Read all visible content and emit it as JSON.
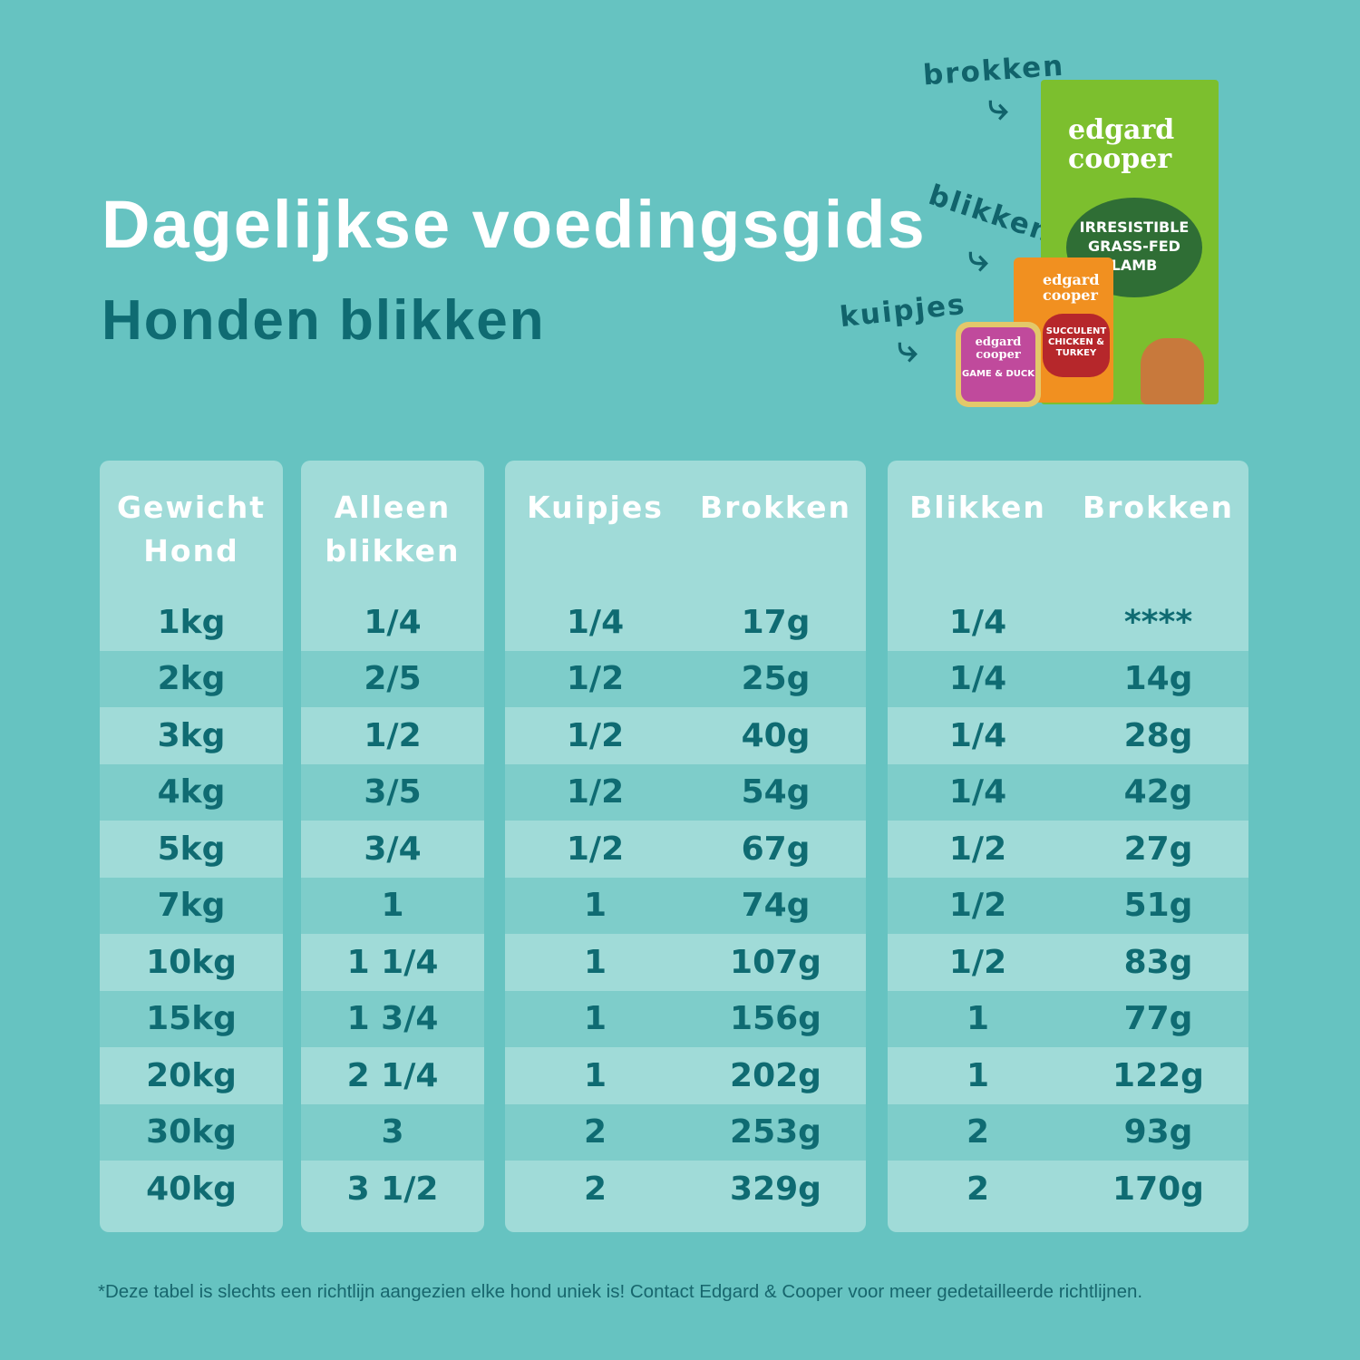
{
  "header": {
    "title": "Dagelijkse voedingsgids",
    "subtitle": "Honden blikken"
  },
  "products": {
    "labels": {
      "brokken": "brokken",
      "blikken": "blikken",
      "kuipjes": "kuipjes"
    },
    "bag": {
      "brand": "edgard cooper",
      "flavor": "IRRESISTIBLE GRASS-FED LAMB"
    },
    "can": {
      "brand": "edgard cooper",
      "flavor": "SUCCULENT CHICKEN & TURKEY"
    },
    "tray": {
      "brand": "edgard cooper",
      "flavor": "GAME & DUCK"
    }
  },
  "table": {
    "card1": {
      "headers": [
        "Gewicht Hond"
      ],
      "rows": [
        [
          "1kg"
        ],
        [
          "2kg"
        ],
        [
          "3kg"
        ],
        [
          "4kg"
        ],
        [
          "5kg"
        ],
        [
          "7kg"
        ],
        [
          "10kg"
        ],
        [
          "15kg"
        ],
        [
          "20kg"
        ],
        [
          "30kg"
        ],
        [
          "40kg"
        ]
      ]
    },
    "card2": {
      "headers": [
        "Alleen blikken"
      ],
      "rows": [
        [
          "1/4"
        ],
        [
          "2/5"
        ],
        [
          "1/2"
        ],
        [
          "3/5"
        ],
        [
          "3/4"
        ],
        [
          "1"
        ],
        [
          "1 1/4"
        ],
        [
          "1 3/4"
        ],
        [
          "2 1/4"
        ],
        [
          "3"
        ],
        [
          "3 1/2"
        ]
      ]
    },
    "card3": {
      "headers": [
        "Kuipjes",
        "Brokken"
      ],
      "rows": [
        [
          "1/4",
          "17g"
        ],
        [
          "1/2",
          "25g"
        ],
        [
          "1/2",
          "40g"
        ],
        [
          "1/2",
          "54g"
        ],
        [
          "1/2",
          "67g"
        ],
        [
          "1",
          "74g"
        ],
        [
          "1",
          "107g"
        ],
        [
          "1",
          "156g"
        ],
        [
          "1",
          "202g"
        ],
        [
          "2",
          "253g"
        ],
        [
          "2",
          "329g"
        ]
      ]
    },
    "card4": {
      "headers": [
        "Blikken",
        "Brokken"
      ],
      "rows": [
        [
          "1/4",
          "****"
        ],
        [
          "1/4",
          "14g"
        ],
        [
          "1/4",
          "28g"
        ],
        [
          "1/4",
          "42g"
        ],
        [
          "1/2",
          "27g"
        ],
        [
          "1/2",
          "51g"
        ],
        [
          "1/2",
          "83g"
        ],
        [
          "1",
          "77g"
        ],
        [
          "1",
          "122g"
        ],
        [
          "2",
          "93g"
        ],
        [
          "2",
          "170g"
        ]
      ]
    }
  },
  "footnote": "*Deze tabel is slechts een richtlijn aangezien elke hond uniek is! Contact Edgard & Cooper voor meer gedetailleerde richtlijnen.",
  "colors": {
    "background": "#66c3c1",
    "cell_light": "#a0dbd8",
    "cell_dark": "#7ecdca",
    "text_dark": "#0f6b72"
  }
}
